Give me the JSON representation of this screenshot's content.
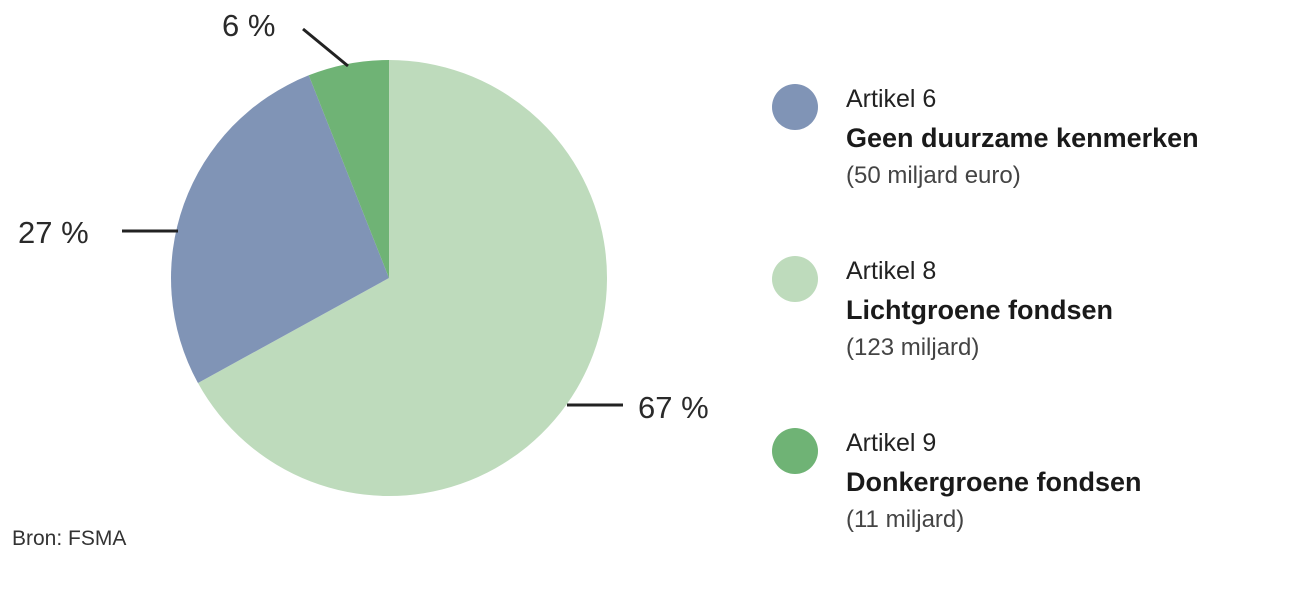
{
  "chart_data": {
    "type": "pie",
    "slices": [
      {
        "label": "Artikel 6",
        "category": "Geen duurzame kenmerken",
        "amount_text": "(50 miljard euro)",
        "value": 27,
        "value_label": "27 %",
        "color": "#8094b6"
      },
      {
        "label": "Artikel 8",
        "category": "Lichtgroene fondsen",
        "amount_text": "(123 miljard)",
        "value": 67,
        "value_label": "67 %",
        "color": "#bedbbc"
      },
      {
        "label": "Artikel 9",
        "category": "Donkergroene fondsen",
        "amount_text": "(11 miljard)",
        "value": 6,
        "value_label": "6 %",
        "color": "#6fb375"
      }
    ],
    "legend_position": "right",
    "unit": "%"
  },
  "source": "Bron: FSMA"
}
